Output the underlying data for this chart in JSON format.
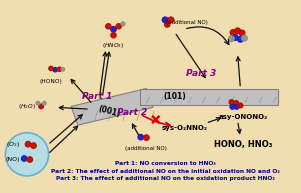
{
  "bg_color": "#f0ddb0",
  "fig_width": 3.01,
  "fig_height": 1.93,
  "dpi": 100,
  "surface_101_label": "(101)",
  "surface_001_label": "(001)",
  "part1_label": "Part 1",
  "part2_label": "Part 2",
  "part3_label": "Part 3",
  "part_color": "#880088",
  "sys_label": "sys-O₂NNO₂",
  "asy_label": "asy-ONONO₂",
  "hono_hno3_label": "HONO, HNO₃",
  "caption1": "Part 1: NO conversion to HNO₃",
  "caption2": "Part 2: The effect of additional NO on the initial oxidation NO and O₂",
  "caption3": "Part 3: The effect of additional NO on the oxidation product HNO₃",
  "caption_color": "#000099",
  "caption_fontsize": 4.2,
  "mol_red": "#cc1100",
  "mol_blue": "#2222cc",
  "mol_gray": "#999999",
  "mol_white": "#dddddd",
  "mol_darkblue": "#000066",
  "arrow_color": "#111111",
  "red_arrow_color": "#dd0000",
  "surface_color": "#c0c0c0",
  "surface_edge": "#808080",
  "circle_edge": "#55aacc",
  "circle_fill": "#aaddee"
}
